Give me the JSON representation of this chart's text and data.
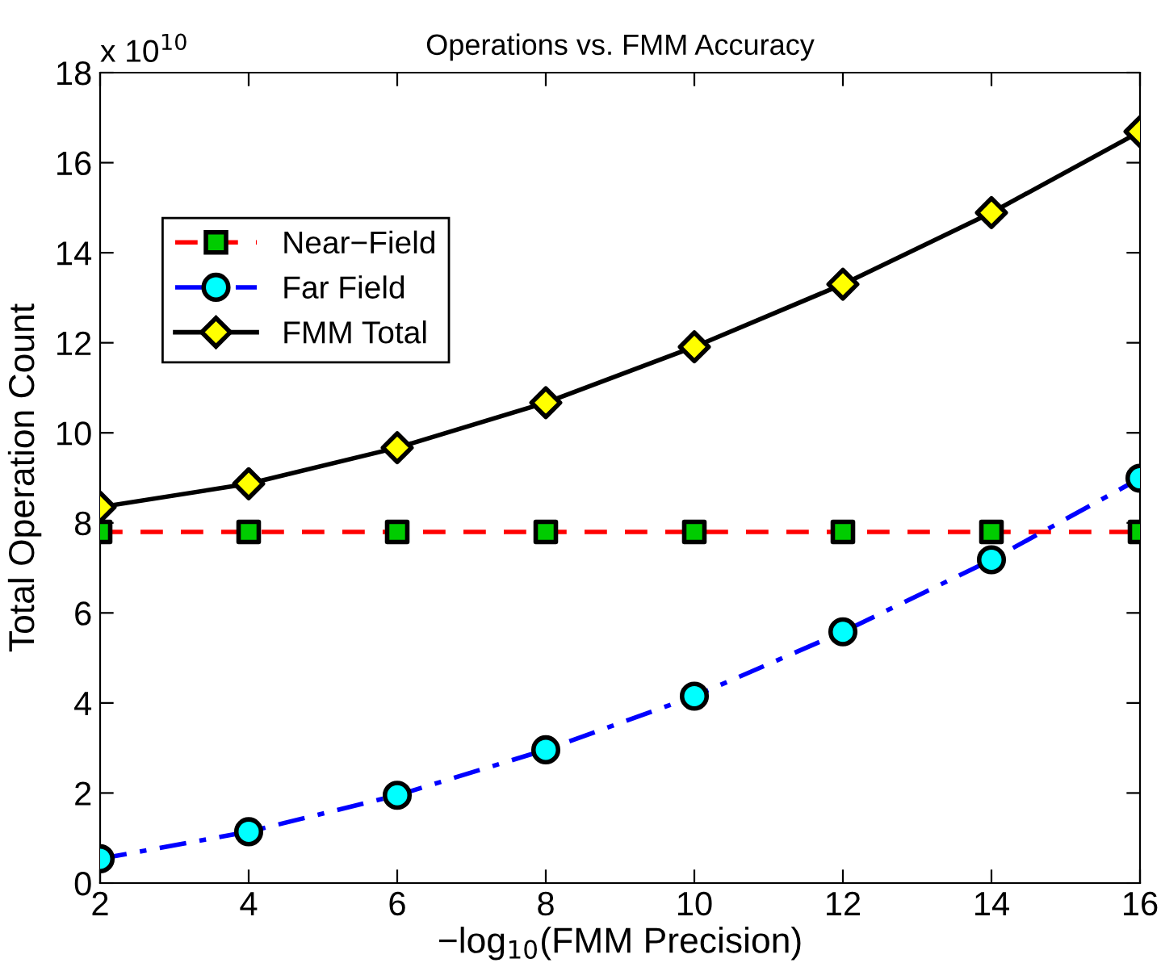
{
  "chart_data": {
    "type": "line",
    "title": "Operations vs. FMM Accuracy",
    "xlabel": "−log$_{10}$(FMM Precision)",
    "ylabel": "Total Operation Count",
    "annotations": [
      "x 10$^{10}$"
    ],
    "x": [
      2,
      4,
      6,
      8,
      10,
      12,
      14,
      16
    ],
    "series": [
      {
        "name": "Near−Field",
        "color": "#ff0000",
        "colors": [
          "#00cc00",
          "#00cc00",
          "#00cc00",
          "#00cc00",
          "#00cc00",
          "#00cc00",
          "#00cc00",
          "#00cc00"
        ],
        "marker": "square",
        "line_style": "dashed",
        "values": [
          7.8,
          7.8,
          7.8,
          7.8,
          7.8,
          7.8,
          7.8,
          7.8
        ]
      },
      {
        "name": "Far Field",
        "color": "#0000ff",
        "colors": [
          "#00ffff",
          "#00ffff",
          "#00ffff",
          "#00ffff",
          "#00ffff",
          "#00ffff",
          "#00ffff",
          "#00ffff"
        ],
        "marker": "circle",
        "line_style": "dashdot",
        "values": [
          0.54,
          1.14,
          1.95,
          2.96,
          4.15,
          5.58,
          7.18,
          8.99
        ]
      },
      {
        "name": "FMM Total",
        "color": "#000000",
        "colors": [
          "#ffff00",
          "#ffff00",
          "#ffff00",
          "#ffff00",
          "#ffff00",
          "#ffff00",
          "#ffff00",
          "#ffff00"
        ],
        "marker": "diamond",
        "line_style": "solid",
        "values": [
          8.35,
          8.87,
          9.67,
          10.67,
          11.91,
          13.3,
          14.89,
          16.69
        ]
      }
    ],
    "xlim": [
      2,
      16
    ],
    "xticks": [
      2,
      4,
      6,
      8,
      10,
      12,
      14,
      16
    ],
    "ylim": [
      0,
      18
    ],
    "yticks": [
      0,
      2,
      4,
      6,
      8,
      10,
      12,
      14,
      16,
      18
    ],
    "grid": false,
    "legend": "top left"
  }
}
